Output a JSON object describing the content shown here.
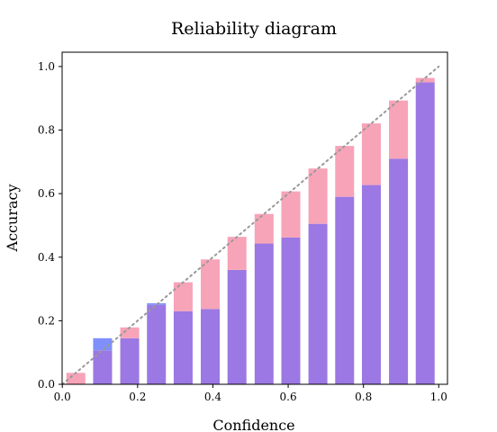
{
  "chart_data": {
    "type": "bar",
    "title": "Reliability diagram",
    "xlabel": "Confidence",
    "ylabel": "Accuracy",
    "xlim": [
      0.0,
      1.0
    ],
    "ylim": [
      0.0,
      1.0
    ],
    "xticks": [
      "0.0",
      "0.2",
      "0.4",
      "0.6",
      "0.8",
      "1.0"
    ],
    "yticks": [
      "0.0",
      "0.2",
      "0.4",
      "0.6",
      "0.8",
      "1.0"
    ],
    "bin_width": 0.0714,
    "bin_centers": [
      0.036,
      0.107,
      0.179,
      0.25,
      0.321,
      0.393,
      0.464,
      0.536,
      0.607,
      0.679,
      0.75,
      0.821,
      0.893,
      0.964
    ],
    "series": [
      {
        "key": "confidence",
        "color": "#f7a3b8",
        "values": [
          0.036,
          0.107,
          0.179,
          0.25,
          0.321,
          0.393,
          0.464,
          0.536,
          0.607,
          0.679,
          0.75,
          0.821,
          0.893,
          0.964
        ]
      },
      {
        "key": "accuracy",
        "color": "#7f8ffb",
        "values": [
          0.0,
          0.145,
          0.145,
          0.255,
          0.23,
          0.237,
          0.36,
          0.443,
          0.462,
          0.505,
          0.59,
          0.627,
          0.71,
          0.95
        ]
      }
    ],
    "overlap_color": "#9b78e3",
    "diagonal": {
      "from": [
        0,
        0
      ],
      "to": [
        1,
        1
      ],
      "style": "dotted",
      "color": "#999999"
    },
    "grid": false,
    "legend": "none"
  }
}
